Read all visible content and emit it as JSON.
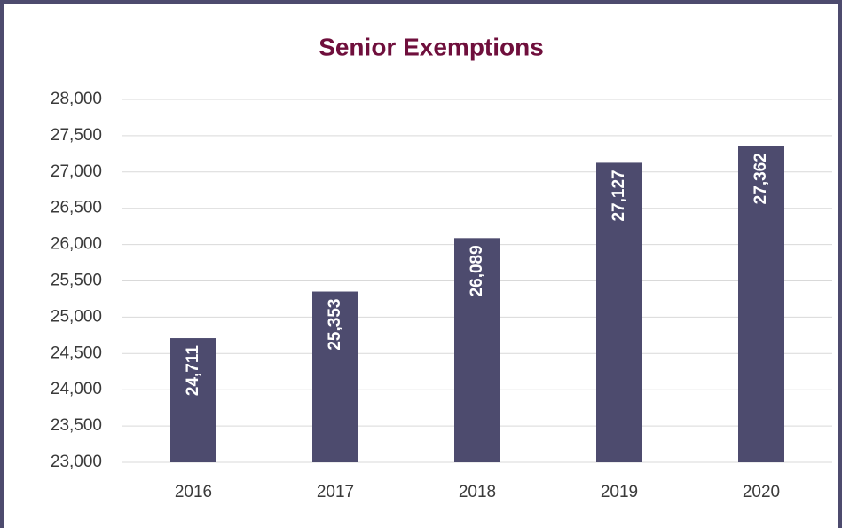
{
  "chart_data": {
    "type": "bar",
    "title": "Senior Exemptions",
    "categories": [
      "2016",
      "2017",
      "2018",
      "2019",
      "2020"
    ],
    "values": [
      24711,
      25353,
      26089,
      27127,
      27362
    ],
    "value_labels": [
      "24,711",
      "25,353",
      "26,089",
      "27,127",
      "27,362"
    ],
    "color": "#4d4b6e",
    "ylim": [
      23000,
      28000
    ],
    "yticks": [
      {
        "value": 23000,
        "label": "23,000"
      },
      {
        "value": 23500,
        "label": "23,500"
      },
      {
        "value": 24000,
        "label": "24,000"
      },
      {
        "value": 24500,
        "label": "24,500"
      },
      {
        "value": 25000,
        "label": "25,000"
      },
      {
        "value": 25500,
        "label": "25,500"
      },
      {
        "value": 26000,
        "label": "26,000"
      },
      {
        "value": 26500,
        "label": "26,500"
      },
      {
        "value": 27000,
        "label": "27,000"
      },
      {
        "value": 27500,
        "label": "27,500"
      },
      {
        "value": 28000,
        "label": "28,000"
      }
    ],
    "grid": true
  }
}
